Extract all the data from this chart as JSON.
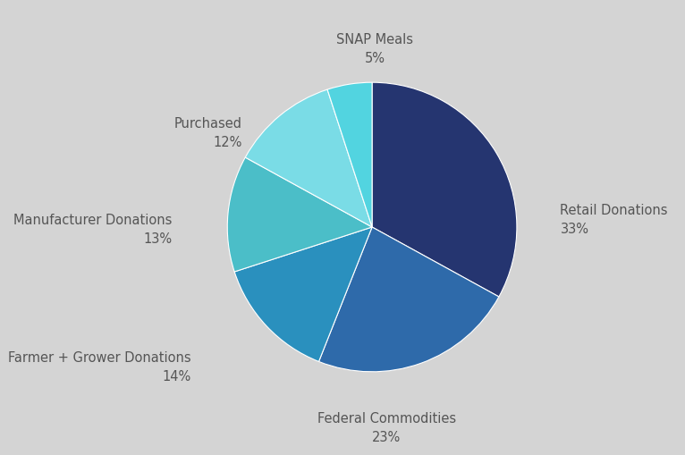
{
  "labels": [
    "Retail Donations",
    "Federal Commodities",
    "Farmer + Grower Donations",
    "Manufacturer Donations",
    "Purchased",
    "SNAP Meals"
  ],
  "values": [
    33,
    23,
    14,
    13,
    12,
    5
  ],
  "colors": [
    "#253570",
    "#2e6aaa",
    "#2a90be",
    "#4bbec8",
    "#7adce6",
    "#52d4e0"
  ],
  "pct_labels": [
    "33%",
    "23%",
    "14%",
    "13%",
    "12%",
    "5%"
  ],
  "background_color": "#d4d4d4",
  "text_color": "#555555",
  "label_fontsize": 10.5,
  "pct_fontsize": 10.5,
  "startangle": 90,
  "figsize": [
    7.66,
    5.1
  ],
  "dpi": 100
}
